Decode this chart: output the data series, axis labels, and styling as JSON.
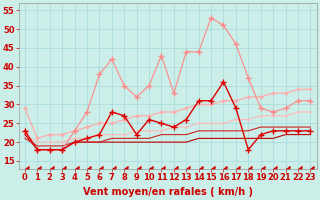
{
  "x": [
    0,
    1,
    2,
    3,
    4,
    5,
    6,
    7,
    8,
    9,
    10,
    11,
    12,
    13,
    14,
    15,
    16,
    17,
    18,
    19,
    20,
    21,
    22,
    23
  ],
  "series": [
    {
      "name": "rafales_pink",
      "values": [
        23,
        18,
        18,
        18,
        23,
        28,
        38,
        42,
        35,
        32,
        35,
        43,
        33,
        44,
        44,
        53,
        51,
        46,
        37,
        29,
        28,
        29,
        31,
        31
      ],
      "color": "#ff8888",
      "lw": 0.8,
      "marker": "+",
      "ms": 4,
      "ls": "-",
      "zorder": 3
    },
    {
      "name": "trend_upper_pink",
      "values": [
        29,
        21,
        22,
        22,
        23,
        24,
        25,
        25,
        26,
        27,
        27,
        28,
        28,
        29,
        30,
        30,
        31,
        31,
        32,
        32,
        33,
        33,
        34,
        34
      ],
      "color": "#ffaaaa",
      "lw": 0.9,
      "marker": "+",
      "ms": 3,
      "ls": "-",
      "zorder": 2
    },
    {
      "name": "trend_lower_pink",
      "values": [
        22,
        20,
        20,
        20,
        21,
        21,
        22,
        22,
        22,
        23,
        23,
        23,
        24,
        24,
        25,
        25,
        25,
        26,
        26,
        27,
        27,
        27,
        28,
        28
      ],
      "color": "#ffbbbb",
      "lw": 0.8,
      "marker": "+",
      "ms": 2,
      "ls": "-",
      "zorder": 2
    },
    {
      "name": "moyen_dark",
      "values": [
        23,
        18,
        18,
        18,
        20,
        21,
        22,
        28,
        27,
        22,
        26,
        25,
        24,
        26,
        31,
        31,
        36,
        29,
        18,
        22,
        23,
        23,
        23,
        23
      ],
      "color": "#dd0000",
      "lw": 1.0,
      "marker": "+",
      "ms": 4,
      "ls": "-",
      "zorder": 4
    },
    {
      "name": "flat_dark",
      "values": [
        22,
        18,
        18,
        18,
        20,
        20,
        20,
        20,
        20,
        20,
        20,
        20,
        20,
        20,
        21,
        21,
        21,
        21,
        21,
        21,
        21,
        22,
        22,
        22
      ],
      "color": "#bb0000",
      "lw": 0.8,
      "marker": null,
      "ms": 0,
      "ls": "-",
      "zorder": 2
    },
    {
      "name": "trend_dark",
      "values": [
        21,
        19,
        19,
        19,
        20,
        20,
        20,
        21,
        21,
        21,
        21,
        22,
        22,
        22,
        23,
        23,
        23,
        23,
        23,
        24,
        24,
        24,
        24,
        24
      ],
      "color": "#cc2222",
      "lw": 0.8,
      "marker": null,
      "ms": 0,
      "ls": "-",
      "zorder": 2
    },
    {
      "name": "dashed_bottom",
      "values": [
        13,
        13,
        13,
        13,
        13,
        13,
        13,
        13,
        13,
        13,
        13,
        13,
        13,
        13,
        13,
        13,
        13,
        13,
        13,
        13,
        13,
        13,
        13,
        13
      ],
      "color": "#cc0000",
      "lw": 0.7,
      "marker": 4,
      "ms": 4,
      "ls": "--",
      "zorder": 1
    }
  ],
  "xlabel": "Vent moyen/en rafales ( km/h )",
  "ylim": [
    13,
    57
  ],
  "yticks": [
    15,
    20,
    25,
    30,
    35,
    40,
    45,
    50,
    55
  ],
  "xlim": [
    -0.5,
    23.5
  ],
  "xticks": [
    0,
    1,
    2,
    3,
    4,
    5,
    6,
    7,
    8,
    9,
    10,
    11,
    12,
    13,
    14,
    15,
    16,
    17,
    18,
    19,
    20,
    21,
    22,
    23
  ],
  "bg_color": "#cceee8",
  "grid_color": "#aadddd",
  "tick_color": "#cc0000",
  "label_color": "#cc0000",
  "xlabel_fontsize": 7,
  "tick_fontsize": 6
}
